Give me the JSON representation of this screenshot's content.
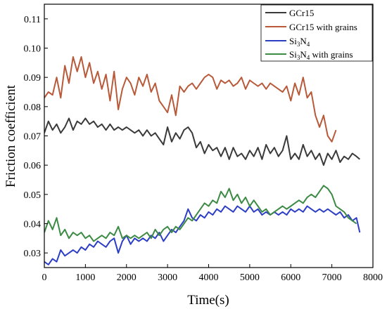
{
  "chart_data": {
    "type": "line",
    "title": "",
    "xlabel": "Time(s)",
    "ylabel": "Friction coefficient",
    "xlim": [
      0,
      8000
    ],
    "ylim": [
      0.025,
      0.115
    ],
    "xticks": [
      0,
      1000,
      2000,
      3000,
      4000,
      5000,
      6000,
      7000,
      8000
    ],
    "yticks": [
      0.03,
      0.04,
      0.05,
      0.06,
      0.07,
      0.08,
      0.09,
      0.1,
      0.11
    ],
    "ytick_labels": [
      "0.03",
      "0.04",
      "0.05",
      "0.06",
      "0.07",
      "0.08",
      "0.09",
      "0.10",
      "0.11"
    ],
    "grid": false,
    "legend_position": "top-right",
    "series": [
      {
        "name": "GCr15",
        "color": "#3a3a3a",
        "x": [
          0,
          100,
          200,
          300,
          400,
          500,
          600,
          700,
          800,
          900,
          1000,
          1100,
          1200,
          1300,
          1400,
          1500,
          1600,
          1700,
          1800,
          1900,
          2000,
          2100,
          2200,
          2300,
          2400,
          2500,
          2600,
          2700,
          2800,
          2900,
          3000,
          3100,
          3200,
          3300,
          3400,
          3500,
          3600,
          3700,
          3800,
          3900,
          4000,
          4100,
          4200,
          4300,
          4400,
          4500,
          4600,
          4700,
          4800,
          4900,
          5000,
          5100,
          5200,
          5300,
          5400,
          5500,
          5600,
          5700,
          5800,
          5900,
          6000,
          6100,
          6200,
          6300,
          6400,
          6500,
          6600,
          6700,
          6800,
          6900,
          7000,
          7100,
          7200,
          7300,
          7400,
          7500,
          7600,
          7680
        ],
        "y": [
          0.071,
          0.075,
          0.072,
          0.074,
          0.071,
          0.073,
          0.076,
          0.072,
          0.075,
          0.074,
          0.076,
          0.074,
          0.075,
          0.073,
          0.074,
          0.072,
          0.074,
          0.072,
          0.073,
          0.072,
          0.073,
          0.072,
          0.071,
          0.072,
          0.07,
          0.072,
          0.07,
          0.071,
          0.069,
          0.067,
          0.073,
          0.068,
          0.071,
          0.069,
          0.072,
          0.073,
          0.071,
          0.066,
          0.068,
          0.064,
          0.067,
          0.065,
          0.066,
          0.063,
          0.066,
          0.062,
          0.066,
          0.063,
          0.064,
          0.062,
          0.065,
          0.063,
          0.066,
          0.062,
          0.067,
          0.064,
          0.066,
          0.063,
          0.065,
          0.07,
          0.062,
          0.064,
          0.062,
          0.067,
          0.063,
          0.065,
          0.062,
          0.064,
          0.06,
          0.064,
          0.062,
          0.065,
          0.061,
          0.063,
          0.062,
          0.064,
          0.063,
          0.062
        ]
      },
      {
        "name": "GCr15 with grains",
        "color": "#b85a3a",
        "x": [
          0,
          100,
          200,
          300,
          400,
          500,
          600,
          700,
          800,
          900,
          1000,
          1100,
          1200,
          1300,
          1400,
          1500,
          1600,
          1700,
          1800,
          1900,
          2000,
          2100,
          2200,
          2300,
          2400,
          2500,
          2600,
          2700,
          2800,
          2900,
          3000,
          3100,
          3200,
          3300,
          3400,
          3500,
          3600,
          3700,
          3800,
          3900,
          4000,
          4100,
          4200,
          4300,
          4400,
          4500,
          4600,
          4700,
          4800,
          4900,
          5000,
          5100,
          5200,
          5300,
          5400,
          5500,
          5600,
          5700,
          5800,
          5900,
          6000,
          6100,
          6200,
          6300,
          6400,
          6500,
          6600,
          6700,
          6800,
          6900,
          7000,
          7100
        ],
        "y": [
          0.083,
          0.085,
          0.084,
          0.09,
          0.083,
          0.094,
          0.088,
          0.097,
          0.092,
          0.097,
          0.09,
          0.095,
          0.088,
          0.092,
          0.086,
          0.091,
          0.082,
          0.092,
          0.079,
          0.086,
          0.09,
          0.088,
          0.084,
          0.09,
          0.087,
          0.091,
          0.085,
          0.088,
          0.082,
          0.08,
          0.078,
          0.084,
          0.077,
          0.087,
          0.085,
          0.087,
          0.088,
          0.086,
          0.088,
          0.09,
          0.091,
          0.09,
          0.086,
          0.089,
          0.088,
          0.089,
          0.087,
          0.088,
          0.09,
          0.086,
          0.089,
          0.088,
          0.087,
          0.088,
          0.086,
          0.088,
          0.087,
          0.086,
          0.085,
          0.087,
          0.082,
          0.088,
          0.084,
          0.09,
          0.083,
          0.085,
          0.077,
          0.073,
          0.077,
          0.07,
          0.068,
          0.072
        ]
      },
      {
        "name": "Si3N4",
        "legend_main": "Si",
        "legend_sub1": "3",
        "legend_mid": "N",
        "legend_sub2": "4",
        "legend_suffix": "",
        "color": "#2d3ec6",
        "x": [
          0,
          100,
          200,
          300,
          400,
          500,
          600,
          700,
          800,
          900,
          1000,
          1100,
          1200,
          1300,
          1400,
          1500,
          1600,
          1700,
          1800,
          1900,
          2000,
          2100,
          2200,
          2300,
          2400,
          2500,
          2600,
          2700,
          2800,
          2900,
          3000,
          3100,
          3200,
          3300,
          3400,
          3500,
          3600,
          3700,
          3800,
          3900,
          4000,
          4100,
          4200,
          4300,
          4400,
          4500,
          4600,
          4700,
          4800,
          4900,
          5000,
          5100,
          5200,
          5300,
          5400,
          5500,
          5600,
          5700,
          5800,
          5900,
          6000,
          6100,
          6200,
          6300,
          6400,
          6500,
          6600,
          6700,
          6800,
          6900,
          7000,
          7100,
          7200,
          7300,
          7400,
          7500,
          7600,
          7680
        ],
        "y": [
          0.027,
          0.026,
          0.028,
          0.027,
          0.031,
          0.029,
          0.03,
          0.031,
          0.03,
          0.032,
          0.031,
          0.033,
          0.032,
          0.034,
          0.033,
          0.032,
          0.034,
          0.035,
          0.03,
          0.034,
          0.036,
          0.033,
          0.035,
          0.034,
          0.035,
          0.034,
          0.036,
          0.035,
          0.037,
          0.034,
          0.036,
          0.038,
          0.037,
          0.039,
          0.041,
          0.045,
          0.042,
          0.041,
          0.043,
          0.042,
          0.044,
          0.043,
          0.045,
          0.044,
          0.046,
          0.045,
          0.044,
          0.046,
          0.045,
          0.044,
          0.046,
          0.044,
          0.045,
          0.043,
          0.044,
          0.043,
          0.044,
          0.043,
          0.044,
          0.043,
          0.045,
          0.044,
          0.045,
          0.044,
          0.046,
          0.045,
          0.044,
          0.045,
          0.044,
          0.045,
          0.044,
          0.043,
          0.044,
          0.042,
          0.043,
          0.041,
          0.042,
          0.037
        ]
      },
      {
        "name": "Si3N4 with grains",
        "legend_main": "Si",
        "legend_sub1": "3",
        "legend_mid": "N",
        "legend_sub2": "4",
        "legend_suffix": " with grains",
        "color": "#3c8a44",
        "x": [
          0,
          100,
          200,
          300,
          400,
          500,
          600,
          700,
          800,
          900,
          1000,
          1100,
          1200,
          1300,
          1400,
          1500,
          1600,
          1700,
          1800,
          1900,
          2000,
          2100,
          2200,
          2300,
          2400,
          2500,
          2600,
          2700,
          2800,
          2900,
          3000,
          3100,
          3200,
          3300,
          3400,
          3500,
          3600,
          3700,
          3800,
          3900,
          4000,
          4100,
          4200,
          4300,
          4400,
          4500,
          4600,
          4700,
          4800,
          4900,
          5000,
          5100,
          5200,
          5300,
          5400,
          5500,
          5600,
          5700,
          5800,
          5900,
          6000,
          6100,
          6200,
          6300,
          6400,
          6500,
          6600,
          6700,
          6800,
          6900,
          7000,
          7100,
          7200,
          7300,
          7400,
          7500,
          7600
        ],
        "y": [
          0.037,
          0.041,
          0.038,
          0.042,
          0.036,
          0.038,
          0.035,
          0.037,
          0.036,
          0.037,
          0.035,
          0.036,
          0.034,
          0.035,
          0.036,
          0.035,
          0.037,
          0.036,
          0.039,
          0.035,
          0.036,
          0.035,
          0.036,
          0.035,
          0.036,
          0.037,
          0.035,
          0.038,
          0.036,
          0.038,
          0.039,
          0.037,
          0.039,
          0.038,
          0.04,
          0.042,
          0.041,
          0.043,
          0.045,
          0.047,
          0.046,
          0.048,
          0.047,
          0.051,
          0.049,
          0.052,
          0.048,
          0.05,
          0.047,
          0.049,
          0.046,
          0.048,
          0.046,
          0.044,
          0.045,
          0.043,
          0.044,
          0.045,
          0.046,
          0.045,
          0.046,
          0.047,
          0.048,
          0.047,
          0.049,
          0.05,
          0.049,
          0.051,
          0.053,
          0.052,
          0.05,
          0.046,
          0.045,
          0.044,
          0.042,
          0.041,
          0.04
        ]
      }
    ]
  }
}
